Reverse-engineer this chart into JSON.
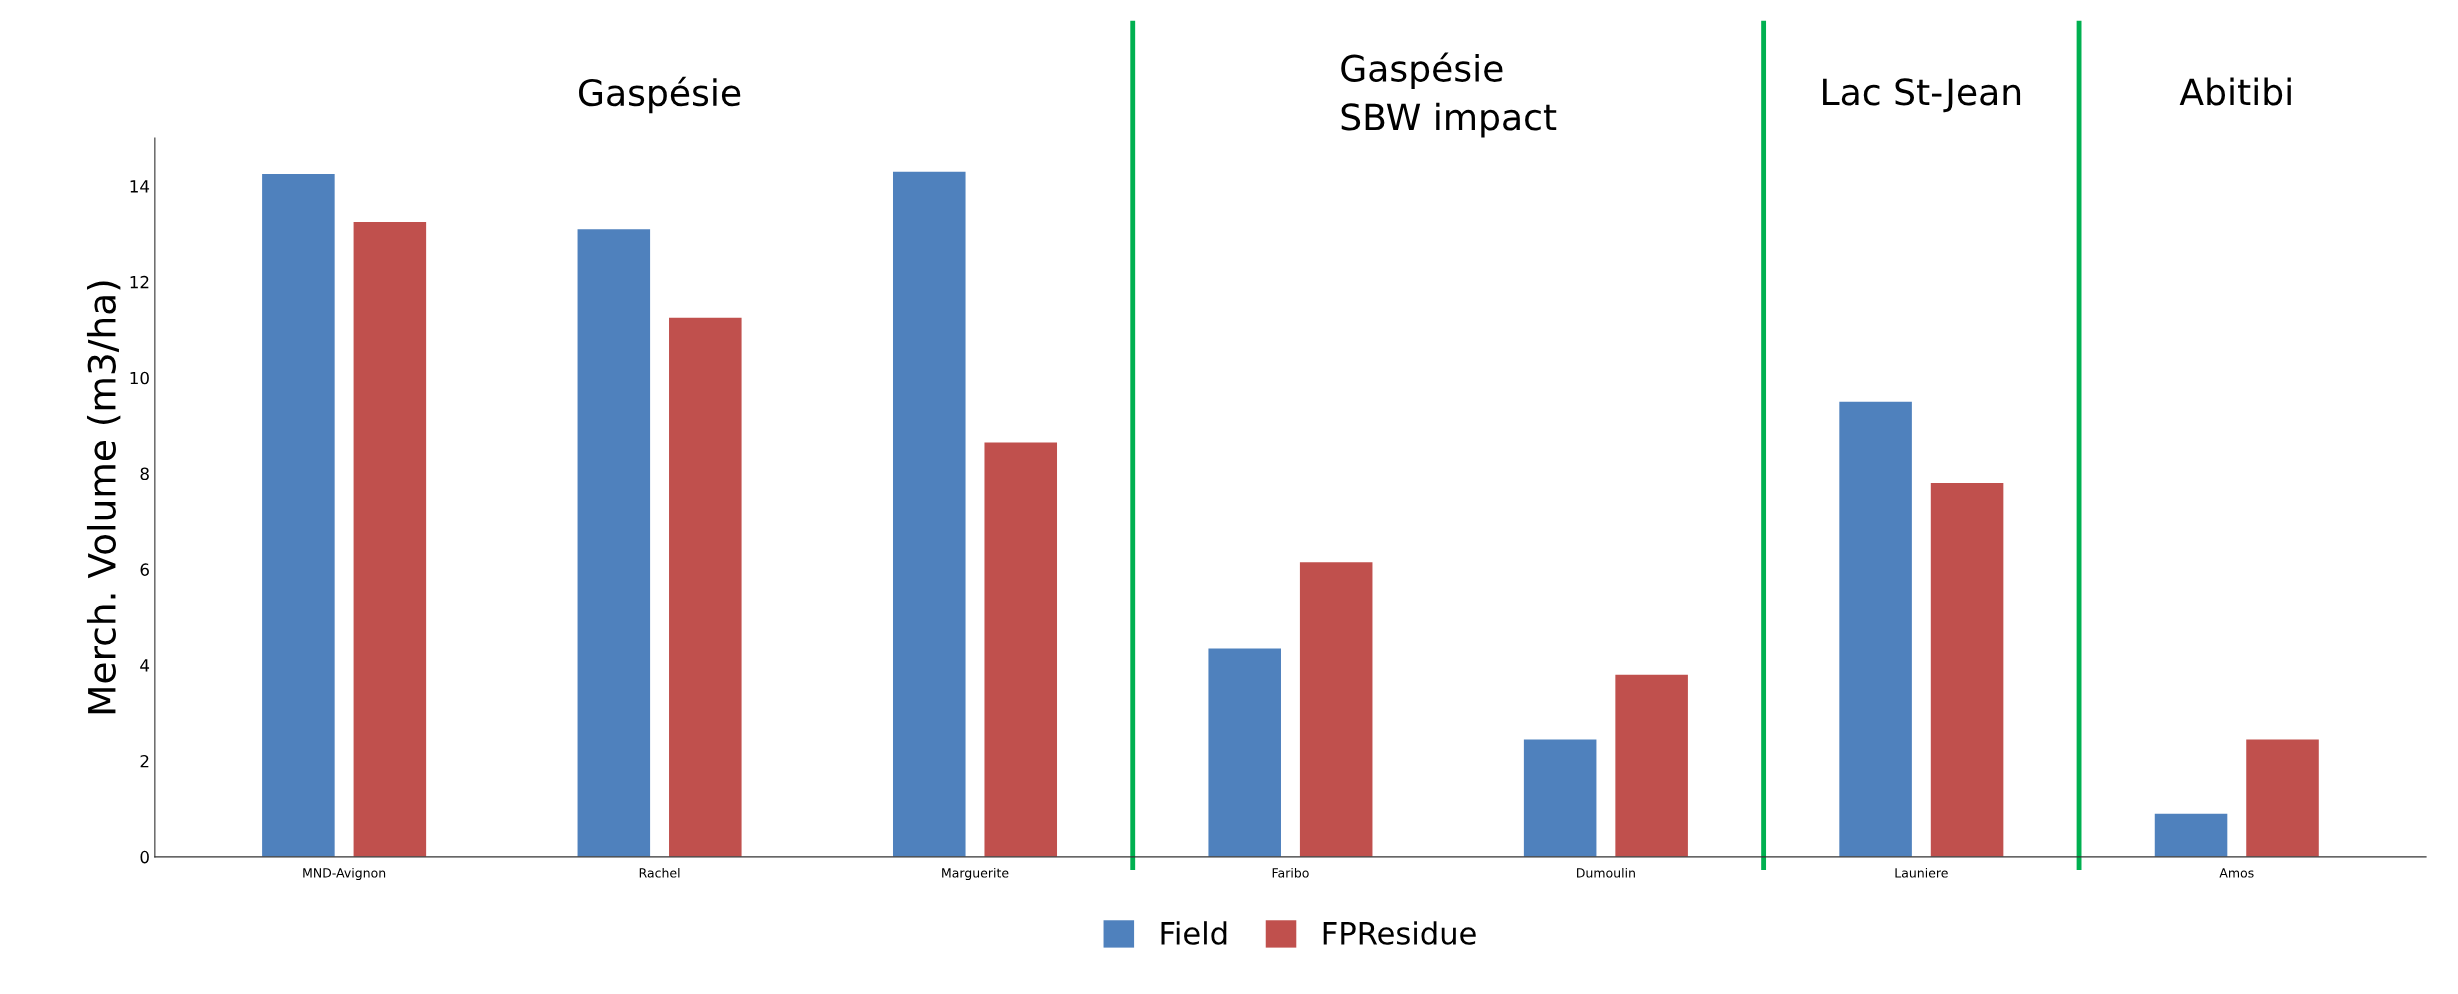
{
  "chart_data": {
    "type": "bar",
    "ylabel": "Merch. Volume (m3/ha)",
    "categories": [
      "MND-Avignon",
      "Rachel",
      "Marguerite",
      "Faribo",
      "Dumoulin",
      "Launiere",
      "Amos"
    ],
    "series": [
      {
        "name": "Field",
        "color": "#4f81bd",
        "values": [
          14.25,
          13.1,
          14.3,
          4.35,
          2.45,
          9.5,
          0.9
        ]
      },
      {
        "name": "FPResidue",
        "color": "#c0504d",
        "values": [
          13.25,
          11.25,
          8.65,
          6.15,
          3.8,
          7.8,
          2.45
        ]
      }
    ],
    "ylim": [
      0,
      15
    ],
    "yticks": [
      0,
      2,
      4,
      6,
      8,
      10,
      12,
      14
    ],
    "grid": false,
    "legend": "bottom",
    "annotations": [
      "Gaspésie",
      "Gaspésie\nSBW impact",
      "Lac St-Jean",
      "Abitibi"
    ]
  }
}
